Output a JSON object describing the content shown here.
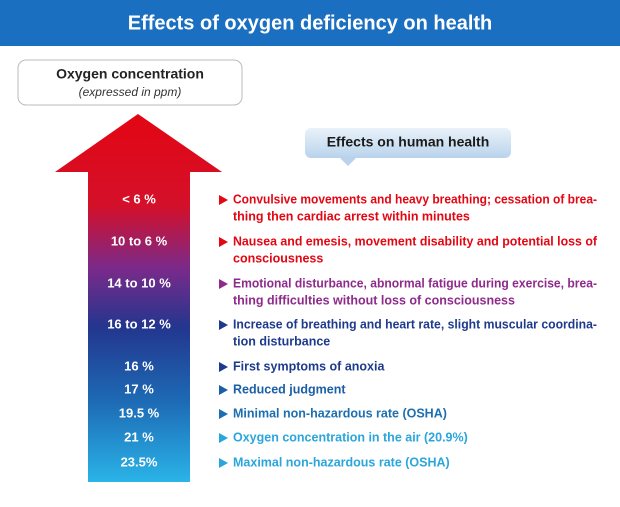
{
  "header": {
    "title": "Effects of oxygen deficiency on health"
  },
  "concentration_box": {
    "title": "Oxygen concentration",
    "subtitle": "(expressed in ppm)"
  },
  "effects_box": {
    "title": "Effects on human health"
  },
  "levels": [
    {
      "label": "< 6 %",
      "color": "#e30613",
      "effect": [
        "Convulsive movements and heavy breathing; cessation of brea-",
        "thing then cardiac arrest within minutes"
      ]
    },
    {
      "label": "10 to 6 %",
      "color": "#e30613",
      "effect": [
        "Nausea and emesis, movement disability and potential loss of",
        "consciousness"
      ]
    },
    {
      "label": "14 to 10 %",
      "color": "#8e2a8b",
      "effect": [
        "Emotional disturbance, abnormal fatigue during exercise, brea-",
        "thing difficulties without loss of consciousness"
      ]
    },
    {
      "label": "16 to 12 %",
      "color": "#1e3a8c",
      "effect": [
        "Increase of breathing and heart rate, slight muscular coordina-",
        "tion disturbance"
      ]
    },
    {
      "label": "16 %",
      "color": "#1e3a8c",
      "effect": [
        "First symptoms of anoxia"
      ]
    },
    {
      "label": "17 %",
      "color": "#1c5ea8",
      "effect": [
        "Reduced judgment"
      ]
    },
    {
      "label": "19.5 %",
      "color": "#1c6fb2",
      "effect": [
        "Minimal non-hazardous rate (OSHA)"
      ]
    },
    {
      "label": "21 %",
      "color": "#2aa6dc",
      "effect": [
        "Oxygen concentration in the air (20.9%)"
      ]
    },
    {
      "label": "23.5%",
      "color": "#2aa6dc",
      "effect": [
        "Maximal non-hazardous rate (OSHA)"
      ]
    }
  ]
}
